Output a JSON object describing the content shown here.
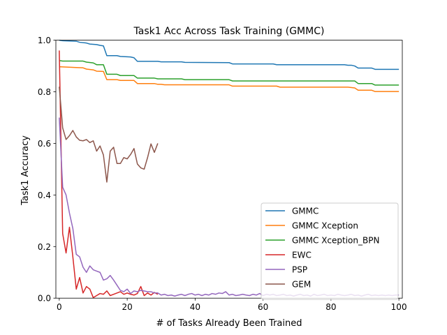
{
  "chart_data": {
    "type": "line",
    "title": "Task1 Acc Across Task Training (GMMC)",
    "xlabel": "# of Tasks Already Been Trained",
    "ylabel": "Task1 Accuracy",
    "xlim": [
      -1,
      101
    ],
    "ylim": [
      0,
      1.0
    ],
    "xticks": [
      0,
      20,
      40,
      60,
      80,
      100
    ],
    "yticks": [
      0.0,
      0.2,
      0.4,
      0.6,
      0.8,
      1.0
    ],
    "xtick_labels": [
      "0",
      "20",
      "40",
      "60",
      "80",
      "100"
    ],
    "ytick_labels": [
      "0.0",
      "0.2",
      "0.4",
      "0.6",
      "0.8",
      "1.0"
    ],
    "grid": false,
    "legend_position": "lower-right",
    "series": [
      {
        "name": "GMMC",
        "color": "#1f77b4",
        "points": [
          [
            0,
            1.0
          ],
          [
            1,
            0.998
          ],
          [
            5,
            0.996
          ],
          [
            6,
            0.992
          ],
          [
            8,
            0.989
          ],
          [
            9,
            0.985
          ],
          [
            11,
            0.983
          ],
          [
            12,
            0.98
          ],
          [
            13,
            0.978
          ],
          [
            14,
            0.94
          ],
          [
            17,
            0.94
          ],
          [
            18,
            0.937
          ],
          [
            21,
            0.935
          ],
          [
            22,
            0.932
          ],
          [
            23,
            0.918
          ],
          [
            29,
            0.918
          ],
          [
            30,
            0.916
          ],
          [
            36,
            0.916
          ],
          [
            37,
            0.914
          ],
          [
            50,
            0.913
          ],
          [
            51,
            0.908
          ],
          [
            63,
            0.908
          ],
          [
            64,
            0.905
          ],
          [
            84,
            0.905
          ],
          [
            85,
            0.903
          ],
          [
            86,
            0.903
          ],
          [
            87,
            0.9
          ],
          [
            88,
            0.892
          ],
          [
            92,
            0.892
          ],
          [
            93,
            0.887
          ],
          [
            100,
            0.887
          ]
        ]
      },
      {
        "name": "GMMC Xception",
        "color": "#ff7f0e",
        "points": [
          [
            0,
            0.897
          ],
          [
            5,
            0.894
          ],
          [
            7,
            0.893
          ],
          [
            8,
            0.888
          ],
          [
            10,
            0.885
          ],
          [
            11,
            0.88
          ],
          [
            13,
            0.879
          ],
          [
            14,
            0.847
          ],
          [
            17,
            0.847
          ],
          [
            18,
            0.844
          ],
          [
            22,
            0.844
          ],
          [
            23,
            0.832
          ],
          [
            28,
            0.832
          ],
          [
            29,
            0.829
          ],
          [
            30,
            0.829
          ],
          [
            31,
            0.827
          ],
          [
            50,
            0.827
          ],
          [
            51,
            0.822
          ],
          [
            64,
            0.822
          ],
          [
            65,
            0.818
          ],
          [
            85,
            0.818
          ],
          [
            87,
            0.815
          ],
          [
            88,
            0.806
          ],
          [
            92,
            0.806
          ],
          [
            93,
            0.801
          ],
          [
            100,
            0.801
          ]
        ]
      },
      {
        "name": "GMMC Xception_BPN",
        "color": "#2ca02c",
        "points": [
          [
            0,
            0.921
          ],
          [
            1,
            0.919
          ],
          [
            7,
            0.919
          ],
          [
            8,
            0.915
          ],
          [
            10,
            0.912
          ],
          [
            11,
            0.905
          ],
          [
            13,
            0.905
          ],
          [
            14,
            0.868
          ],
          [
            17,
            0.868
          ],
          [
            18,
            0.863
          ],
          [
            22,
            0.863
          ],
          [
            23,
            0.853
          ],
          [
            28,
            0.853
          ],
          [
            29,
            0.85
          ],
          [
            36,
            0.85
          ],
          [
            37,
            0.847
          ],
          [
            50,
            0.847
          ],
          [
            51,
            0.842
          ],
          [
            87,
            0.842
          ],
          [
            88,
            0.832
          ],
          [
            92,
            0.832
          ],
          [
            93,
            0.826
          ],
          [
            100,
            0.826
          ]
        ]
      },
      {
        "name": "EWC",
        "color": "#d62728",
        "points": [
          [
            0,
            0.96
          ],
          [
            1,
            0.25
          ],
          [
            2,
            0.175
          ],
          [
            3,
            0.275
          ],
          [
            4,
            0.16
          ],
          [
            5,
            0.035
          ],
          [
            6,
            0.08
          ],
          [
            7,
            0.02
          ],
          [
            8,
            0.045
          ],
          [
            9,
            0.035
          ],
          [
            10,
            0.002
          ],
          [
            11,
            0.01
          ],
          [
            12,
            0.018
          ],
          [
            13,
            0.015
          ],
          [
            14,
            0.028
          ],
          [
            15,
            0.01
          ],
          [
            16,
            0.015
          ],
          [
            17,
            0.02
          ],
          [
            18,
            0.025
          ],
          [
            19,
            0.015
          ],
          [
            20,
            0.02
          ],
          [
            21,
            0.015
          ],
          [
            22,
            0.012
          ],
          [
            23,
            0.018
          ],
          [
            24,
            0.045
          ],
          [
            25,
            0.01
          ],
          [
            26,
            0.02
          ],
          [
            27,
            0.012
          ],
          [
            28,
            0.022
          ],
          [
            29,
            0.015
          ]
        ]
      },
      {
        "name": "PSP",
        "color": "#9467bd",
        "points": [
          [
            0,
            0.7
          ],
          [
            1,
            0.43
          ],
          [
            2,
            0.4
          ],
          [
            3,
            0.33
          ],
          [
            4,
            0.27
          ],
          [
            5,
            0.17
          ],
          [
            6,
            0.16
          ],
          [
            7,
            0.12
          ],
          [
            8,
            0.1
          ],
          [
            9,
            0.125
          ],
          [
            10,
            0.11
          ],
          [
            11,
            0.105
          ],
          [
            12,
            0.1
          ],
          [
            13,
            0.07
          ],
          [
            14,
            0.075
          ],
          [
            15,
            0.088
          ],
          [
            16,
            0.07
          ],
          [
            17,
            0.05
          ],
          [
            18,
            0.03
          ],
          [
            19,
            0.025
          ],
          [
            20,
            0.035
          ],
          [
            21,
            0.018
          ],
          [
            22,
            0.028
          ],
          [
            23,
            0.025
          ],
          [
            24,
            0.03
          ],
          [
            25,
            0.028
          ],
          [
            26,
            0.025
          ],
          [
            27,
            0.025
          ],
          [
            28,
            0.02
          ],
          [
            29,
            0.02
          ],
          [
            30,
            0.012
          ],
          [
            31,
            0.015
          ],
          [
            32,
            0.01
          ],
          [
            33,
            0.012
          ],
          [
            34,
            0.008
          ],
          [
            35,
            0.012
          ],
          [
            36,
            0.015
          ],
          [
            37,
            0.01
          ],
          [
            38,
            0.015
          ],
          [
            39,
            0.018
          ],
          [
            40,
            0.012
          ],
          [
            41,
            0.015
          ],
          [
            42,
            0.01
          ],
          [
            43,
            0.015
          ],
          [
            44,
            0.012
          ],
          [
            45,
            0.018
          ],
          [
            46,
            0.015
          ],
          [
            47,
            0.02
          ],
          [
            48,
            0.018
          ],
          [
            49,
            0.025
          ],
          [
            50,
            0.012
          ],
          [
            51,
            0.015
          ],
          [
            52,
            0.01
          ],
          [
            53,
            0.012
          ],
          [
            54,
            0.015
          ],
          [
            55,
            0.012
          ],
          [
            56,
            0.01
          ],
          [
            57,
            0.015
          ],
          [
            58,
            0.012
          ],
          [
            59,
            0.018
          ],
          [
            60,
            0.01
          ],
          [
            61,
            0.015
          ],
          [
            62,
            0.012
          ],
          [
            63,
            0.015
          ],
          [
            64,
            0.01
          ],
          [
            65,
            0.012
          ],
          [
            66,
            0.015
          ],
          [
            67,
            0.01
          ],
          [
            68,
            0.012
          ],
          [
            69,
            0.008
          ],
          [
            70,
            0.012
          ],
          [
            71,
            0.015
          ],
          [
            72,
            0.01
          ],
          [
            73,
            0.012
          ],
          [
            74,
            0.008
          ],
          [
            75,
            0.015
          ],
          [
            76,
            0.01
          ],
          [
            77,
            0.012
          ],
          [
            78,
            0.015
          ],
          [
            79,
            0.01
          ],
          [
            80,
            0.012
          ],
          [
            81,
            0.01
          ],
          [
            82,
            0.015
          ],
          [
            83,
            0.012
          ],
          [
            84,
            0.01
          ],
          [
            85,
            0.012
          ],
          [
            86,
            0.015
          ],
          [
            87,
            0.01
          ],
          [
            88,
            0.012
          ],
          [
            89,
            0.008
          ],
          [
            90,
            0.012
          ],
          [
            91,
            0.015
          ],
          [
            92,
            0.01
          ],
          [
            93,
            0.012
          ],
          [
            94,
            0.01
          ],
          [
            95,
            0.012
          ],
          [
            96,
            0.01
          ],
          [
            97,
            0.012
          ],
          [
            98,
            0.01
          ],
          [
            99,
            0.012
          ],
          [
            100,
            0.012
          ]
        ]
      },
      {
        "name": "GEM",
        "color": "#8c564b",
        "points": [
          [
            0,
            0.82
          ],
          [
            1,
            0.66
          ],
          [
            2,
            0.615
          ],
          [
            3,
            0.63
          ],
          [
            4,
            0.65
          ],
          [
            5,
            0.625
          ],
          [
            6,
            0.612
          ],
          [
            7,
            0.61
          ],
          [
            8,
            0.615
          ],
          [
            9,
            0.603
          ],
          [
            10,
            0.61
          ],
          [
            11,
            0.57
          ],
          [
            12,
            0.59
          ],
          [
            13,
            0.555
          ],
          [
            14,
            0.45
          ],
          [
            15,
            0.57
          ],
          [
            16,
            0.585
          ],
          [
            17,
            0.522
          ],
          [
            18,
            0.522
          ],
          [
            19,
            0.545
          ],
          [
            20,
            0.54
          ],
          [
            21,
            0.557
          ],
          [
            22,
            0.58
          ],
          [
            23,
            0.52
          ],
          [
            24,
            0.505
          ],
          [
            25,
            0.5
          ],
          [
            26,
            0.545
          ],
          [
            27,
            0.598
          ],
          [
            28,
            0.565
          ],
          [
            29,
            0.6
          ]
        ]
      }
    ]
  }
}
